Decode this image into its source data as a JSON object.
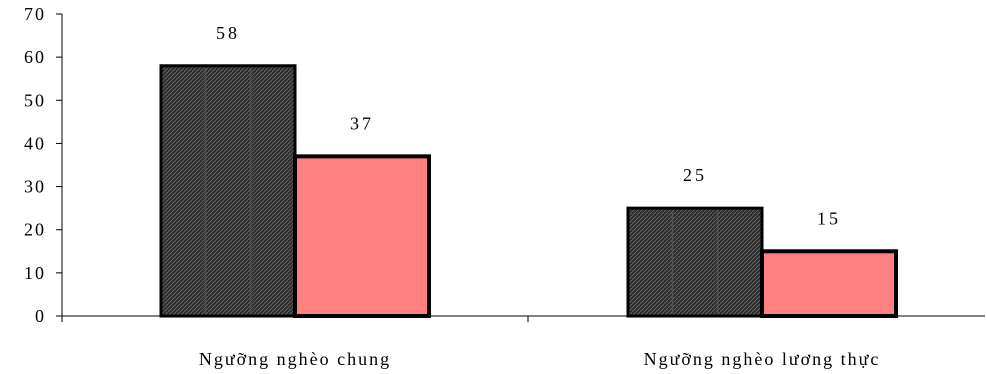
{
  "chart_data": {
    "type": "bar",
    "title": "",
    "xlabel": "",
    "ylabel": "",
    "ylim": [
      0,
      70
    ],
    "yticks": [
      0,
      10,
      20,
      30,
      40,
      50,
      60,
      70
    ],
    "categories": [
      "Ngưỡng nghèo chung",
      "Ngưỡng nghèo lương thực"
    ],
    "series": [
      {
        "values": [
          58,
          25
        ],
        "color": "#2e2e2e"
      },
      {
        "values": [
          37,
          15
        ],
        "color": "#ff8080"
      }
    ],
    "grid": false,
    "legend": "none"
  }
}
